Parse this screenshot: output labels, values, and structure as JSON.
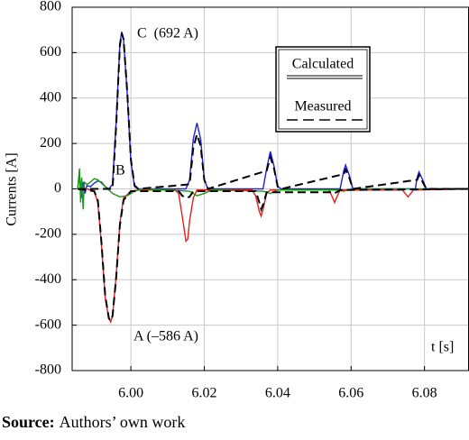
{
  "chart_data": {
    "type": "line",
    "y_label": "Currents [A]",
    "x_label": "t [s]",
    "xlim": [
      5.984,
      6.092
    ],
    "ylim": [
      -800,
      800
    ],
    "xticks": [
      {
        "value": 6,
        "label": "6.00"
      },
      6.02,
      6.04,
      6.06,
      6.08
    ],
    "yticks": [
      -800,
      -600,
      -400,
      -200,
      0,
      200,
      400,
      600,
      800
    ],
    "grid": true,
    "legend": "upper right",
    "annotations": [
      {
        "text": "C  (692 A)",
        "color": "#2020d0"
      },
      {
        "text": "B",
        "color": "#1a8a1a"
      },
      {
        "text": "A (–586 A)",
        "color": "#e02020"
      }
    ],
    "series": [
      {
        "name": "Calculated",
        "color": "#1e1ee6",
        "dash": false,
        "x": [
          5.9855,
          5.986,
          5.9865,
          5.987,
          5.9875,
          5.988,
          5.989,
          5.99,
          5.991,
          5.992,
          5.993,
          5.994,
          5.995,
          5.996,
          5.997,
          5.9975,
          5.998,
          5.999,
          6.0,
          6.001,
          6.002,
          6.015,
          6.016,
          6.017,
          6.018,
          6.019,
          6.02,
          6.021,
          6.036,
          6.037,
          6.038,
          6.039,
          6.04,
          6.041,
          6.057,
          6.058,
          6.0585,
          6.0595,
          6.0605,
          6.0775,
          6.078,
          6.0785,
          6.0795,
          6.0805,
          6.092
        ],
        "values": [
          0,
          60,
          -40,
          30,
          -20,
          15,
          10,
          25,
          35,
          30,
          10,
          0,
          20,
          300,
          640,
          692,
          660,
          420,
          120,
          10,
          0,
          0,
          40,
          220,
          290,
          220,
          40,
          0,
          0,
          90,
          165,
          100,
          10,
          0,
          0,
          80,
          105,
          60,
          0,
          0,
          50,
          75,
          40,
          0,
          0
        ]
      },
      {
        "name": "Calculated",
        "color": "#e61e1e",
        "dash": false,
        "x": [
          5.9855,
          5.988,
          5.99,
          5.991,
          5.992,
          5.993,
          5.994,
          5.9945,
          5.995,
          5.996,
          5.997,
          5.998,
          6.0,
          6.002,
          6.012,
          6.013,
          6.014,
          6.015,
          6.0155,
          6.016,
          6.017,
          6.018,
          6.033,
          6.034,
          6.035,
          6.0355,
          6.036,
          6.037,
          6.038,
          6.054,
          6.055,
          6.0555,
          6.056,
          6.057,
          6.074,
          6.075,
          6.0755,
          6.076,
          6.077,
          6.092
        ],
        "values": [
          0,
          0,
          -10,
          -60,
          -250,
          -480,
          -570,
          -586,
          -560,
          -380,
          -150,
          -40,
          -10,
          -5,
          -5,
          -20,
          -120,
          -230,
          -220,
          -140,
          -40,
          -5,
          -5,
          -30,
          -100,
          -120,
          -90,
          -20,
          -5,
          -5,
          -40,
          -60,
          -40,
          -5,
          -5,
          -25,
          -35,
          -25,
          -5,
          0
        ]
      },
      {
        "name": "Calculated",
        "color": "#1a9a1a",
        "dash": false,
        "x": [
          5.9855,
          5.986,
          5.9863,
          5.9866,
          5.987,
          5.9873,
          5.988,
          5.989,
          5.99,
          5.991,
          5.992,
          5.993,
          5.995,
          5.997,
          5.999,
          6.001,
          6.003,
          6.016,
          6.018,
          6.02,
          6.022,
          6.036,
          6.038,
          6.04,
          6.056,
          6.058,
          6.06,
          6.092
        ],
        "values": [
          0,
          90,
          -60,
          50,
          -90,
          30,
          20,
          30,
          45,
          40,
          25,
          10,
          -20,
          -35,
          -30,
          -10,
          0,
          -10,
          -30,
          -20,
          -5,
          -10,
          -20,
          -5,
          -5,
          -10,
          0,
          0
        ]
      },
      {
        "name": "Measured",
        "color": "#000000",
        "dash": true,
        "x": [
          5.9855,
          5.995,
          5.996,
          5.997,
          5.9975,
          5.998,
          5.999,
          6.0,
          6.001,
          6.002,
          6.016,
          6.017,
          6.018,
          6.019,
          6.02,
          6.021,
          6.037,
          6.038,
          6.039,
          6.04,
          6.041,
          6.058,
          6.0585,
          6.0595,
          6.0605,
          6.078,
          6.0785,
          6.0795,
          6.0805,
          6.092
        ],
        "values": [
          0,
          0,
          280,
          630,
          685,
          660,
          430,
          130,
          15,
          0,
          20,
          180,
          240,
          190,
          40,
          0,
          80,
          140,
          90,
          10,
          0,
          65,
          85,
          50,
          0,
          40,
          60,
          30,
          0,
          0
        ]
      },
      {
        "name": "Measured",
        "color": "#000000",
        "dash": true,
        "x": [
          5.9855,
          5.99,
          5.991,
          5.992,
          5.993,
          5.994,
          5.9945,
          5.995,
          5.996,
          5.997,
          5.998,
          6.0,
          6.013,
          6.014,
          6.015,
          6.016,
          6.017,
          6.034,
          6.035,
          6.0355,
          6.036,
          6.037,
          6.055,
          6.0555,
          6.057,
          6.092
        ],
        "values": [
          0,
          -10,
          -50,
          -240,
          -470,
          -570,
          -580,
          -560,
          -390,
          -160,
          -50,
          -10,
          -10,
          -30,
          -40,
          -35,
          -10,
          -10,
          -60,
          -90,
          -70,
          -15,
          -15,
          -20,
          -5,
          0
        ]
      }
    ]
  },
  "caption": {
    "label": "Source:",
    "text": "Authors’ own work"
  }
}
